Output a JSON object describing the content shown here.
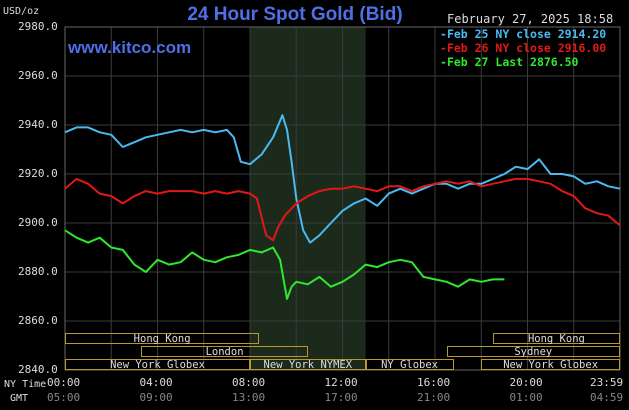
{
  "chart_data": {
    "type": "line",
    "title": "24 Hour Spot Gold (Bid)",
    "website": "www.kitco.com",
    "ylabel": "USD/oz",
    "timestamp": "February 27, 2025 18:58",
    "ylim": [
      2840,
      2980
    ],
    "yticks": [
      "2980.0",
      "2960.0",
      "2940.0",
      "2920.0",
      "2900.0",
      "2880.0",
      "2860.0",
      "2840.0"
    ],
    "xlabel_ny": "NY Time",
    "xlabel_gmt": "GMT",
    "xticks_ny": [
      "00:00",
      "04:00",
      "08:00",
      "12:00",
      "16:00",
      "20:00",
      "23:59"
    ],
    "xticks_gmt": [
      "05:00",
      "09:00",
      "13:00",
      "17:00",
      "21:00",
      "01:00",
      "04:59"
    ],
    "xlim_hours": [
      0,
      24
    ],
    "grid": true,
    "legend_position": "top-right",
    "highlight_hours": [
      8,
      13
    ],
    "markets": [
      {
        "name": "Hong Kong",
        "start": 0,
        "end": 8.4
      },
      {
        "name": "London",
        "start": 3.3,
        "end": 10.5
      },
      {
        "name": "New York Globex",
        "start": 0,
        "end": 8
      },
      {
        "name": "New York NYMEX",
        "start": 8,
        "end": 13
      },
      {
        "name": "NY Globex",
        "start": 13,
        "end": 16.8
      },
      {
        "name": "Hong Kong",
        "start": 18.5,
        "end": 24
      },
      {
        "name": "Sydney",
        "start": 16.5,
        "end": 24
      },
      {
        "name": "New York Globex",
        "start": 18,
        "end": 24
      }
    ],
    "series": [
      {
        "name": "Feb 25 NY close 2914.20",
        "color": "#4ab9f0",
        "x": [
          0,
          0.5,
          1,
          1.5,
          2,
          2.5,
          3,
          3.5,
          4,
          4.5,
          5,
          5.5,
          6,
          6.5,
          7,
          7.3,
          7.6,
          8,
          8.5,
          9,
          9.4,
          9.6,
          9.8,
          10,
          10.3,
          10.6,
          11,
          11.5,
          12,
          12.5,
          13,
          13.5,
          14,
          14.5,
          15,
          15.5,
          16,
          16.5,
          17,
          17.5,
          18,
          18.5,
          19,
          19.5,
          20,
          20.5,
          21,
          21.5,
          22,
          22.5,
          23,
          23.5,
          24
        ],
        "y": [
          2937,
          2939,
          2939,
          2937,
          2936,
          2931,
          2933,
          2935,
          2936,
          2937,
          2938,
          2937,
          2938,
          2937,
          2938,
          2935,
          2925,
          2924,
          2928,
          2935,
          2944,
          2938,
          2925,
          2910,
          2897,
          2892,
          2895,
          2900,
          2905,
          2908,
          2910,
          2907,
          2912,
          2914,
          2912,
          2914,
          2916,
          2916,
          2914,
          2916,
          2916,
          2918,
          2920,
          2923,
          2922,
          2926,
          2920,
          2920,
          2919,
          2916,
          2917,
          2915,
          2914
        ]
      },
      {
        "name": "Feb 26 NY close 2916.00",
        "color": "#e01818",
        "x": [
          0,
          0.5,
          1,
          1.5,
          2,
          2.5,
          3,
          3.5,
          4,
          4.5,
          5,
          5.5,
          6,
          6.5,
          7,
          7.5,
          8,
          8.3,
          8.7,
          9,
          9.2,
          9.5,
          10,
          10.5,
          11,
          11.5,
          12,
          12.5,
          13,
          13.5,
          14,
          14.5,
          15,
          15.5,
          16,
          16.5,
          17,
          17.5,
          18,
          18.5,
          19,
          19.5,
          20,
          20.5,
          21,
          21.5,
          22,
          22.5,
          23,
          23.5,
          24
        ],
        "y": [
          2914,
          2918,
          2916,
          2912,
          2911,
          2908,
          2911,
          2913,
          2912,
          2913,
          2913,
          2913,
          2912,
          2913,
          2912,
          2913,
          2912,
          2910,
          2895,
          2893,
          2898,
          2903,
          2908,
          2911,
          2913,
          2914,
          2914,
          2915,
          2914,
          2913,
          2915,
          2915,
          2913,
          2915,
          2916,
          2917,
          2916,
          2917,
          2915,
          2916,
          2917,
          2918,
          2918,
          2917,
          2916,
          2913,
          2911,
          2906,
          2904,
          2903,
          2899
        ]
      },
      {
        "name": "Feb 27 Last 2876.50",
        "color": "#2ee82e",
        "x": [
          0,
          0.5,
          1,
          1.5,
          2,
          2.5,
          3,
          3.5,
          4,
          4.5,
          5,
          5.5,
          6,
          6.5,
          7,
          7.5,
          8,
          8.5,
          9,
          9.3,
          9.6,
          9.8,
          10,
          10.5,
          11,
          11.5,
          12,
          12.5,
          13,
          13.5,
          14,
          14.5,
          15,
          15.5,
          16,
          16.5,
          17,
          17.5,
          18,
          18.5,
          19
        ],
        "y": [
          2897,
          2894,
          2892,
          2894,
          2890,
          2889,
          2883,
          2880,
          2885,
          2883,
          2884,
          2888,
          2885,
          2884,
          2886,
          2887,
          2889,
          2888,
          2890,
          2885,
          2869,
          2874,
          2876,
          2875,
          2878,
          2874,
          2876,
          2879,
          2883,
          2882,
          2884,
          2885,
          2884,
          2878,
          2877,
          2876,
          2874,
          2877,
          2876,
          2877,
          2877
        ]
      }
    ]
  }
}
